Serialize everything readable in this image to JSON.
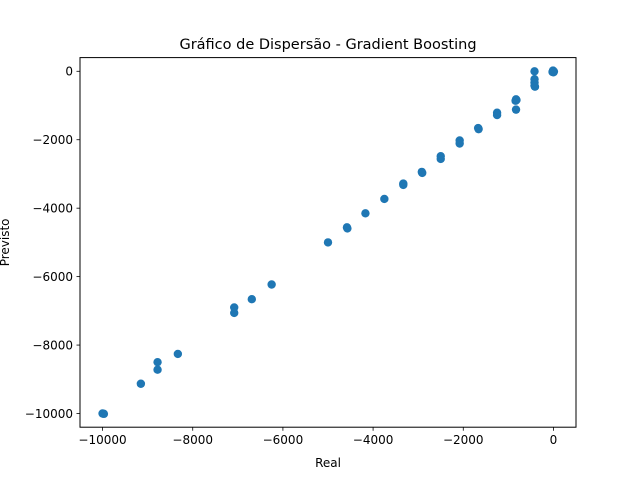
{
  "chart_data": {
    "type": "scatter",
    "title": "Gráfico de Dispersão - Gradient Boosting",
    "xlabel": "Real",
    "ylabel": "Previsto",
    "xlim": [
      -10500,
      500
    ],
    "ylim": [
      -10400,
      400
    ],
    "xticks": [
      -10000,
      -8000,
      -6000,
      -4000,
      -2000,
      0
    ],
    "yticks": [
      -10000,
      -8000,
      -6000,
      -4000,
      -2000,
      0
    ],
    "xtick_labels": [
      "−10000",
      "−8000",
      "−6000",
      "−4000",
      "−2000",
      "0"
    ],
    "ytick_labels": [
      "−10000",
      "−8000",
      "−6000",
      "−4000",
      "−2000",
      "0"
    ],
    "grid": false,
    "series": [
      {
        "name": "Gradient Boosting",
        "color": "#1f77b4",
        "points": [
          {
            "x": -10000,
            "y": -10000
          },
          {
            "x": -9970,
            "y": -10010
          },
          {
            "x": -9150,
            "y": -9130
          },
          {
            "x": -8780,
            "y": -8500
          },
          {
            "x": -8780,
            "y": -8720
          },
          {
            "x": -8330,
            "y": -8260
          },
          {
            "x": -7080,
            "y": -6900
          },
          {
            "x": -7080,
            "y": -7060
          },
          {
            "x": -6690,
            "y": -6660
          },
          {
            "x": -6250,
            "y": -6230
          },
          {
            "x": -5000,
            "y": -5000
          },
          {
            "x": -4580,
            "y": -4560
          },
          {
            "x": -4570,
            "y": -4590
          },
          {
            "x": -4170,
            "y": -4150
          },
          {
            "x": -3750,
            "y": -3730
          },
          {
            "x": -3330,
            "y": -3280
          },
          {
            "x": -3330,
            "y": -3320
          },
          {
            "x": -2920,
            "y": -2940
          },
          {
            "x": -2910,
            "y": -2970
          },
          {
            "x": -2500,
            "y": -2480
          },
          {
            "x": -2500,
            "y": -2560
          },
          {
            "x": -2080,
            "y": -2020
          },
          {
            "x": -2080,
            "y": -2110
          },
          {
            "x": -1670,
            "y": -1660
          },
          {
            "x": -1660,
            "y": -1690
          },
          {
            "x": -1250,
            "y": -1210
          },
          {
            "x": -1250,
            "y": -1280
          },
          {
            "x": -830,
            "y": -820
          },
          {
            "x": -840,
            "y": -860
          },
          {
            "x": -820,
            "y": -840
          },
          {
            "x": -830,
            "y": -1120
          },
          {
            "x": -420,
            "y": 0
          },
          {
            "x": -420,
            "y": -230
          },
          {
            "x": -420,
            "y": -330
          },
          {
            "x": -420,
            "y": -420
          },
          {
            "x": -410,
            "y": -450
          },
          {
            "x": 0,
            "y": 0
          },
          {
            "x": 0,
            "y": -30
          },
          {
            "x": -10,
            "y": 20
          },
          {
            "x": 10,
            "y": -10
          },
          {
            "x": -20,
            "y": -20
          }
        ]
      }
    ]
  }
}
